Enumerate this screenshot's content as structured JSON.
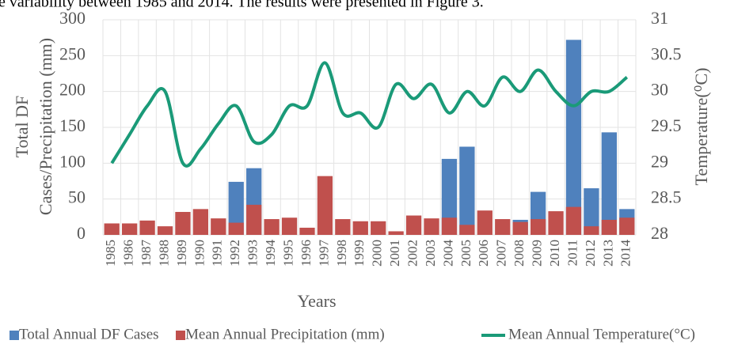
{
  "header_text": "e variability between 1985 and 2014. The results were presented in Figure 3.",
  "chart_data": {
    "type": "bar-line",
    "ylabel": [
      "Total DF",
      "Cases/Precipitation (mm)"
    ],
    "y2label": "Temperature(⁰C)",
    "xlabel": "Years",
    "categories": [
      "1985",
      "1986",
      "1987",
      "1988",
      "1989",
      "1990",
      "1991",
      "1992",
      "1993",
      "1994",
      "1995",
      "1996",
      "1997",
      "1998",
      "1999",
      "2000",
      "2001",
      "2002",
      "2003",
      "2004",
      "2005",
      "2006",
      "2007",
      "2008",
      "2009",
      "2010",
      "2011",
      "2012",
      "2013",
      "2014"
    ],
    "series": [
      {
        "name": "Total Annual DF Cases",
        "color": "#4f81bd",
        "kind": "bar",
        "values": [
          0,
          0,
          0,
          0,
          0,
          0,
          0,
          74,
          93,
          0,
          0,
          0,
          0,
          0,
          0,
          0,
          0,
          0,
          0,
          106,
          123,
          0,
          0,
          21,
          60,
          0,
          272,
          65,
          143,
          36
        ]
      },
      {
        "name": "Mean Annual Precipitation (mm)",
        "color": "#c0504d",
        "kind": "bar",
        "values": [
          16,
          16,
          20,
          12,
          32,
          36,
          23,
          17,
          42,
          22,
          24,
          10,
          82,
          22,
          19,
          19,
          5,
          27,
          23,
          24,
          14,
          34,
          22,
          18,
          22,
          33,
          39,
          12,
          21,
          24
        ]
      },
      {
        "name": "Mean Annual Temperature(°C)",
        "color": "#1a9a78",
        "kind": "line",
        "axis": "y2",
        "values": [
          29.0,
          29.4,
          29.8,
          30.0,
          29.0,
          29.2,
          29.55,
          29.8,
          29.3,
          29.4,
          29.8,
          29.8,
          30.4,
          29.7,
          29.7,
          29.5,
          30.1,
          29.9,
          30.1,
          29.7,
          30.0,
          29.8,
          30.2,
          30.0,
          30.3,
          30.0,
          29.8,
          30.0,
          30.0,
          30.2
        ]
      }
    ],
    "ylim": [
      0,
      300
    ],
    "yticks": [
      0,
      50,
      100,
      150,
      200,
      250,
      300
    ],
    "y2lim": [
      28,
      31
    ],
    "y2ticks": [
      28,
      28.5,
      29,
      29.5,
      30,
      30.5,
      31
    ],
    "grid": true,
    "legend": "bottom"
  }
}
